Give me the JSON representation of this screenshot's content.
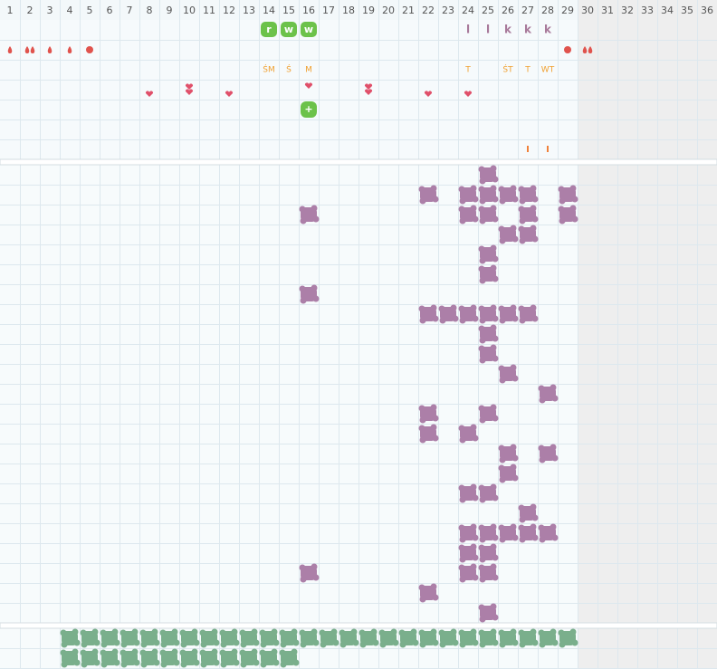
{
  "days": [
    1,
    2,
    3,
    4,
    5,
    6,
    7,
    8,
    9,
    10,
    11,
    12,
    13,
    14,
    15,
    16,
    17,
    18,
    19,
    20,
    21,
    22,
    23,
    24,
    25,
    26,
    27,
    28,
    29,
    30,
    31,
    32,
    33,
    34,
    35,
    36
  ],
  "inactive_from": 30,
  "badges": [
    {
      "day": 14,
      "label": "r"
    },
    {
      "day": 15,
      "label": "w"
    },
    {
      "day": 16,
      "label": "w"
    }
  ],
  "letters": [
    {
      "day": 24,
      "label": "l"
    },
    {
      "day": 25,
      "label": "l"
    },
    {
      "day": 26,
      "label": "k"
    },
    {
      "day": 27,
      "label": "k"
    },
    {
      "day": 28,
      "label": "k"
    }
  ],
  "drops": [
    {
      "day": 1,
      "kind": "drop"
    },
    {
      "day": 2,
      "kind": "double"
    },
    {
      "day": 3,
      "kind": "drop"
    },
    {
      "day": 4,
      "kind": "drop"
    },
    {
      "day": 5,
      "kind": "dot"
    },
    {
      "day": 29,
      "kind": "dot"
    },
    {
      "day": 30,
      "kind": "double"
    }
  ],
  "notes": [
    {
      "day": 14,
      "label": "ŚM"
    },
    {
      "day": 15,
      "label": "Ś"
    },
    {
      "day": 16,
      "label": "M"
    },
    {
      "day": 24,
      "label": "T"
    },
    {
      "day": 26,
      "label": "ŚT"
    },
    {
      "day": 27,
      "label": "T"
    },
    {
      "day": 28,
      "label": "WT"
    }
  ],
  "hearts": [
    {
      "day": 8,
      "count": 1
    },
    {
      "day": 10,
      "count": 2
    },
    {
      "day": 12,
      "count": 1
    },
    {
      "day": 16,
      "count": 1
    },
    {
      "day": 19,
      "count": 2
    },
    {
      "day": 22,
      "count": 1
    },
    {
      "day": 24,
      "count": 1
    }
  ],
  "plus": [
    {
      "day": 16,
      "label": "+"
    }
  ],
  "marks": [
    {
      "day": 27,
      "label": "I"
    },
    {
      "day": 28,
      "label": "I"
    }
  ],
  "grid_rows": [
    [
      25
    ],
    [
      22,
      24,
      25,
      26,
      27,
      29
    ],
    [
      16,
      24,
      25,
      27,
      29
    ],
    [
      26,
      27
    ],
    [
      25
    ],
    [
      25
    ],
    [
      16
    ],
    [
      22,
      23,
      24,
      25,
      26,
      27
    ],
    [
      25
    ],
    [
      25
    ],
    [
      26
    ],
    [
      28
    ],
    [
      22,
      25
    ],
    [
      22,
      24
    ],
    [
      26,
      28
    ],
    [
      26
    ],
    [
      24,
      25
    ],
    [
      27
    ],
    [
      24,
      25,
      26,
      27,
      28
    ],
    [
      24,
      25
    ],
    [
      16,
      24,
      25
    ],
    [
      22
    ],
    [
      25
    ]
  ],
  "bottom_rows": [
    [
      4,
      5,
      6,
      7,
      8,
      9,
      10,
      11,
      12,
      13,
      14,
      15,
      16,
      17,
      18,
      19,
      20,
      21,
      22,
      23,
      24,
      25,
      26,
      27,
      28,
      29
    ],
    [
      4,
      5,
      6,
      7,
      8,
      9,
      10,
      11,
      12,
      13,
      14,
      15
    ]
  ]
}
